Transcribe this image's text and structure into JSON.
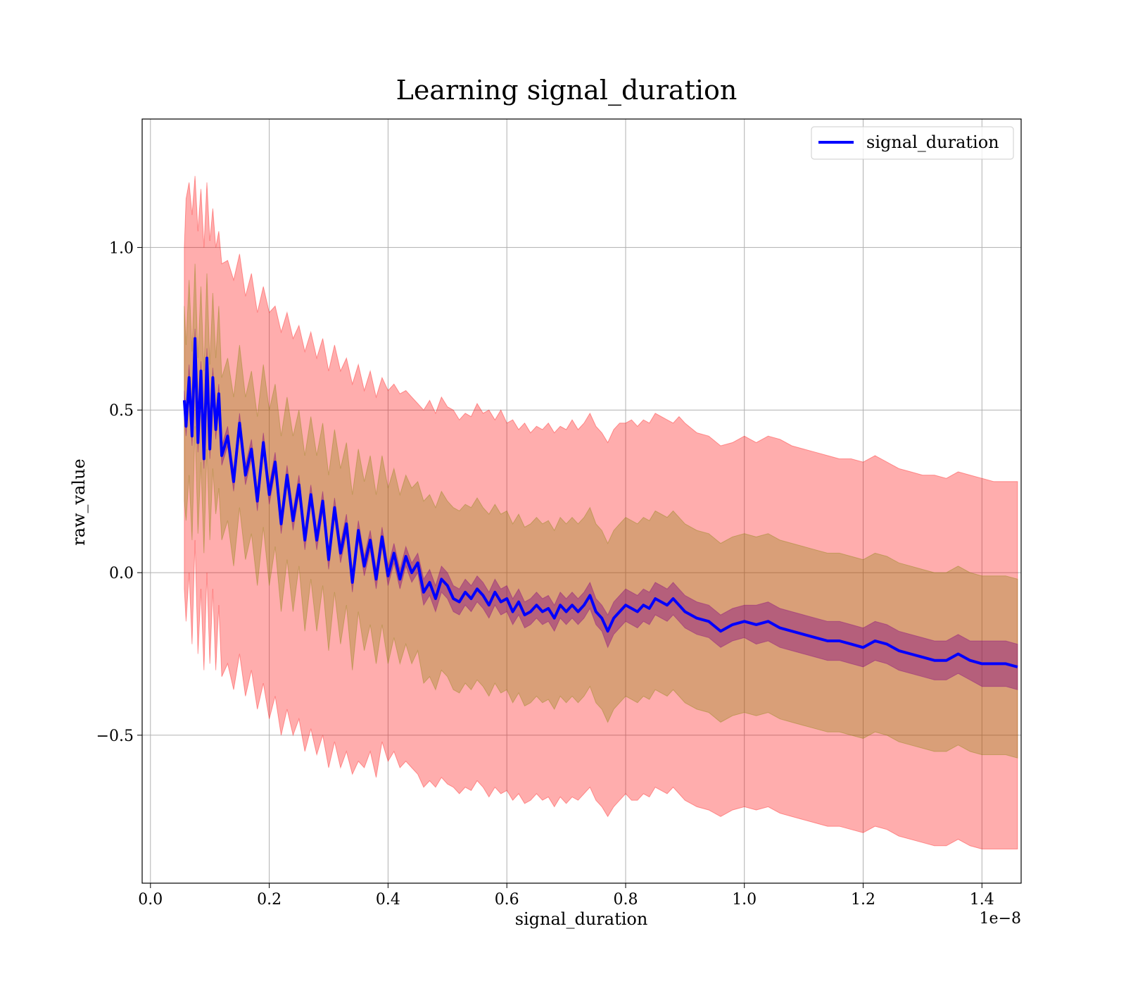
{
  "chart_data": {
    "type": "line",
    "title": "Learning signal_duration",
    "xlabel": "signal_duration",
    "ylabel": "raw_value",
    "x_offset_label": "1e−8",
    "xlim": [
      -0.014,
      1.466
    ],
    "ylim": [
      -0.955,
      1.395
    ],
    "xticks": [
      0.0,
      0.2,
      0.4,
      0.6,
      0.8,
      1.0,
      1.2,
      1.4
    ],
    "xtick_labels": [
      "0.0",
      "0.2",
      "0.4",
      "0.6",
      "0.8",
      "1.0",
      "1.2",
      "1.4"
    ],
    "yticks": [
      -0.5,
      0.0,
      0.5,
      1.0
    ],
    "ytick_labels": [
      "−0.5",
      "0.0",
      "0.5",
      "1.0"
    ],
    "grid": true,
    "legend_position": "top-right",
    "colors": {
      "line": "#0000ff",
      "band_outer": "#ff0000",
      "band_middle": "#808000",
      "band_inner": "#800080"
    },
    "x": [
      0.057,
      0.06,
      0.065,
      0.07,
      0.075,
      0.08,
      0.085,
      0.09,
      0.095,
      0.1,
      0.105,
      0.11,
      0.115,
      0.12,
      0.13,
      0.14,
      0.15,
      0.16,
      0.17,
      0.18,
      0.19,
      0.2,
      0.21,
      0.22,
      0.23,
      0.24,
      0.25,
      0.26,
      0.27,
      0.28,
      0.29,
      0.3,
      0.31,
      0.32,
      0.33,
      0.34,
      0.35,
      0.36,
      0.37,
      0.38,
      0.39,
      0.4,
      0.41,
      0.42,
      0.43,
      0.44,
      0.45,
      0.46,
      0.47,
      0.48,
      0.49,
      0.5,
      0.51,
      0.52,
      0.53,
      0.54,
      0.55,
      0.56,
      0.57,
      0.58,
      0.59,
      0.6,
      0.61,
      0.62,
      0.63,
      0.64,
      0.65,
      0.66,
      0.67,
      0.68,
      0.69,
      0.7,
      0.71,
      0.72,
      0.73,
      0.74,
      0.75,
      0.76,
      0.77,
      0.78,
      0.79,
      0.8,
      0.81,
      0.82,
      0.83,
      0.84,
      0.85,
      0.86,
      0.87,
      0.88,
      0.89,
      0.9,
      0.92,
      0.94,
      0.96,
      0.98,
      1.0,
      1.02,
      1.04,
      1.06,
      1.08,
      1.1,
      1.12,
      1.14,
      1.16,
      1.18,
      1.2,
      1.22,
      1.24,
      1.26,
      1.28,
      1.3,
      1.32,
      1.34,
      1.36,
      1.38,
      1.4,
      1.42,
      1.44,
      1.46
    ],
    "series": [
      {
        "name": "signal_duration",
        "values": [
          0.53,
          0.45,
          0.6,
          0.42,
          0.72,
          0.4,
          0.62,
          0.35,
          0.66,
          0.38,
          0.6,
          0.44,
          0.55,
          0.36,
          0.42,
          0.28,
          0.46,
          0.3,
          0.38,
          0.22,
          0.4,
          0.24,
          0.34,
          0.15,
          0.3,
          0.16,
          0.27,
          0.1,
          0.24,
          0.1,
          0.22,
          0.04,
          0.2,
          0.06,
          0.15,
          -0.03,
          0.13,
          0.02,
          0.1,
          -0.02,
          0.11,
          -0.01,
          0.06,
          -0.02,
          0.05,
          0.0,
          0.03,
          -0.06,
          -0.03,
          -0.08,
          -0.02,
          -0.04,
          -0.08,
          -0.09,
          -0.06,
          -0.08,
          -0.05,
          -0.07,
          -0.1,
          -0.06,
          -0.09,
          -0.08,
          -0.12,
          -0.09,
          -0.13,
          -0.12,
          -0.1,
          -0.12,
          -0.11,
          -0.14,
          -0.1,
          -0.12,
          -0.1,
          -0.12,
          -0.1,
          -0.07,
          -0.12,
          -0.14,
          -0.18,
          -0.14,
          -0.12,
          -0.1,
          -0.11,
          -0.12,
          -0.1,
          -0.11,
          -0.08,
          -0.09,
          -0.1,
          -0.08,
          -0.1,
          -0.12,
          -0.14,
          -0.15,
          -0.18,
          -0.16,
          -0.15,
          -0.16,
          -0.15,
          -0.17,
          -0.18,
          -0.19,
          -0.2,
          -0.21,
          -0.21,
          -0.22,
          -0.23,
          -0.21,
          -0.22,
          -0.24,
          -0.25,
          -0.26,
          -0.27,
          -0.27,
          -0.25,
          -0.27,
          -0.28,
          -0.28,
          -0.28,
          -0.29
        ]
      }
    ],
    "bands": [
      {
        "role": "outer",
        "upper": [
          1.0,
          1.15,
          1.2,
          1.1,
          1.22,
          1.05,
          1.18,
          1.0,
          1.2,
          1.02,
          1.12,
          1.0,
          1.05,
          0.95,
          0.96,
          0.9,
          0.98,
          0.85,
          0.92,
          0.8,
          0.88,
          0.8,
          0.82,
          0.74,
          0.8,
          0.72,
          0.76,
          0.68,
          0.74,
          0.66,
          0.72,
          0.62,
          0.7,
          0.62,
          0.66,
          0.58,
          0.64,
          0.56,
          0.62,
          0.54,
          0.6,
          0.56,
          0.58,
          0.55,
          0.56,
          0.54,
          0.52,
          0.5,
          0.53,
          0.49,
          0.54,
          0.51,
          0.5,
          0.47,
          0.49,
          0.48,
          0.52,
          0.49,
          0.5,
          0.47,
          0.5,
          0.46,
          0.47,
          0.44,
          0.46,
          0.43,
          0.45,
          0.44,
          0.46,
          0.43,
          0.45,
          0.44,
          0.47,
          0.44,
          0.46,
          0.49,
          0.45,
          0.43,
          0.4,
          0.44,
          0.46,
          0.46,
          0.47,
          0.45,
          0.47,
          0.46,
          0.49,
          0.48,
          0.47,
          0.46,
          0.48,
          0.46,
          0.43,
          0.42,
          0.39,
          0.4,
          0.42,
          0.4,
          0.42,
          0.41,
          0.39,
          0.38,
          0.37,
          0.36,
          0.35,
          0.35,
          0.34,
          0.36,
          0.34,
          0.32,
          0.31,
          0.3,
          0.3,
          0.29,
          0.31,
          0.3,
          0.29,
          0.28,
          0.28,
          0.28
        ],
        "lower": [
          -0.05,
          -0.15,
          0.0,
          -0.22,
          0.1,
          -0.25,
          -0.05,
          -0.3,
          0.0,
          -0.28,
          -0.05,
          -0.3,
          -0.1,
          -0.32,
          -0.28,
          -0.36,
          -0.25,
          -0.38,
          -0.3,
          -0.42,
          -0.34,
          -0.45,
          -0.38,
          -0.5,
          -0.42,
          -0.5,
          -0.45,
          -0.55,
          -0.48,
          -0.56,
          -0.5,
          -0.6,
          -0.52,
          -0.6,
          -0.55,
          -0.62,
          -0.58,
          -0.6,
          -0.55,
          -0.63,
          -0.52,
          -0.58,
          -0.55,
          -0.6,
          -0.58,
          -0.6,
          -0.62,
          -0.66,
          -0.64,
          -0.66,
          -0.63,
          -0.65,
          -0.66,
          -0.68,
          -0.66,
          -0.67,
          -0.64,
          -0.66,
          -0.69,
          -0.66,
          -0.68,
          -0.67,
          -0.7,
          -0.68,
          -0.71,
          -0.7,
          -0.68,
          -0.7,
          -0.69,
          -0.72,
          -0.69,
          -0.71,
          -0.69,
          -0.7,
          -0.68,
          -0.66,
          -0.7,
          -0.72,
          -0.75,
          -0.72,
          -0.7,
          -0.68,
          -0.7,
          -0.7,
          -0.68,
          -0.69,
          -0.66,
          -0.67,
          -0.68,
          -0.66,
          -0.68,
          -0.7,
          -0.72,
          -0.73,
          -0.75,
          -0.73,
          -0.72,
          -0.73,
          -0.72,
          -0.74,
          -0.75,
          -0.76,
          -0.77,
          -0.78,
          -0.78,
          -0.79,
          -0.8,
          -0.78,
          -0.79,
          -0.81,
          -0.82,
          -0.83,
          -0.84,
          -0.84,
          -0.82,
          -0.84,
          -0.85,
          -0.85,
          -0.85,
          -0.85
        ]
      },
      {
        "role": "middle",
        "upper": [
          0.82,
          0.7,
          0.9,
          0.68,
          0.95,
          0.66,
          0.88,
          0.62,
          0.92,
          0.64,
          0.86,
          0.66,
          0.82,
          0.6,
          0.66,
          0.54,
          0.7,
          0.54,
          0.62,
          0.48,
          0.64,
          0.5,
          0.58,
          0.42,
          0.54,
          0.42,
          0.5,
          0.36,
          0.48,
          0.36,
          0.46,
          0.3,
          0.44,
          0.32,
          0.4,
          0.24,
          0.38,
          0.28,
          0.36,
          0.24,
          0.36,
          0.26,
          0.32,
          0.24,
          0.3,
          0.26,
          0.28,
          0.22,
          0.24,
          0.2,
          0.25,
          0.22,
          0.2,
          0.19,
          0.21,
          0.2,
          0.23,
          0.2,
          0.18,
          0.21,
          0.18,
          0.19,
          0.15,
          0.18,
          0.14,
          0.15,
          0.17,
          0.15,
          0.16,
          0.13,
          0.17,
          0.15,
          0.17,
          0.15,
          0.17,
          0.2,
          0.15,
          0.13,
          0.09,
          0.13,
          0.15,
          0.17,
          0.16,
          0.15,
          0.17,
          0.16,
          0.19,
          0.18,
          0.17,
          0.19,
          0.17,
          0.15,
          0.13,
          0.12,
          0.09,
          0.11,
          0.12,
          0.11,
          0.12,
          0.1,
          0.09,
          0.08,
          0.07,
          0.06,
          0.06,
          0.05,
          0.04,
          0.06,
          0.05,
          0.03,
          0.02,
          0.01,
          0.0,
          0.0,
          0.02,
          0.0,
          -0.01,
          -0.01,
          -0.01,
          -0.02
        ],
        "lower": [
          0.22,
          0.16,
          0.3,
          0.1,
          0.45,
          0.12,
          0.34,
          0.06,
          0.38,
          0.1,
          0.32,
          0.18,
          0.26,
          0.1,
          0.16,
          0.02,
          0.2,
          0.04,
          0.12,
          -0.04,
          0.14,
          -0.04,
          0.08,
          -0.12,
          0.04,
          -0.12,
          0.02,
          -0.18,
          -0.02,
          -0.18,
          -0.04,
          -0.24,
          -0.06,
          -0.22,
          -0.1,
          -0.3,
          -0.12,
          -0.24,
          -0.16,
          -0.28,
          -0.16,
          -0.28,
          -0.2,
          -0.28,
          -0.22,
          -0.28,
          -0.24,
          -0.34,
          -0.32,
          -0.36,
          -0.3,
          -0.32,
          -0.36,
          -0.37,
          -0.34,
          -0.36,
          -0.33,
          -0.35,
          -0.38,
          -0.34,
          -0.37,
          -0.36,
          -0.4,
          -0.37,
          -0.41,
          -0.4,
          -0.38,
          -0.4,
          -0.39,
          -0.42,
          -0.38,
          -0.4,
          -0.38,
          -0.4,
          -0.38,
          -0.35,
          -0.4,
          -0.42,
          -0.46,
          -0.42,
          -0.4,
          -0.38,
          -0.39,
          -0.4,
          -0.38,
          -0.39,
          -0.36,
          -0.37,
          -0.38,
          -0.36,
          -0.38,
          -0.4,
          -0.42,
          -0.43,
          -0.46,
          -0.44,
          -0.43,
          -0.44,
          -0.43,
          -0.45,
          -0.46,
          -0.47,
          -0.48,
          -0.49,
          -0.49,
          -0.5,
          -0.51,
          -0.49,
          -0.5,
          -0.52,
          -0.53,
          -0.54,
          -0.55,
          -0.55,
          -0.53,
          -0.55,
          -0.56,
          -0.56,
          -0.56,
          -0.57
        ]
      },
      {
        "role": "inner",
        "upper": [
          0.56,
          0.48,
          0.64,
          0.45,
          0.75,
          0.43,
          0.65,
          0.38,
          0.69,
          0.41,
          0.63,
          0.47,
          0.58,
          0.39,
          0.45,
          0.31,
          0.49,
          0.33,
          0.41,
          0.25,
          0.43,
          0.27,
          0.37,
          0.18,
          0.33,
          0.19,
          0.3,
          0.13,
          0.27,
          0.13,
          0.25,
          0.07,
          0.23,
          0.09,
          0.18,
          0.0,
          0.16,
          0.05,
          0.13,
          0.01,
          0.14,
          0.02,
          0.09,
          0.01,
          0.08,
          0.03,
          0.06,
          -0.02,
          0.01,
          -0.04,
          0.02,
          0.0,
          -0.04,
          -0.05,
          -0.02,
          -0.04,
          -0.01,
          -0.03,
          -0.06,
          -0.02,
          -0.05,
          -0.04,
          -0.08,
          -0.05,
          -0.09,
          -0.08,
          -0.06,
          -0.08,
          -0.07,
          -0.1,
          -0.06,
          -0.08,
          -0.06,
          -0.08,
          -0.06,
          -0.03,
          -0.08,
          -0.1,
          -0.13,
          -0.09,
          -0.07,
          -0.05,
          -0.06,
          -0.07,
          -0.05,
          -0.06,
          -0.03,
          -0.04,
          -0.05,
          -0.03,
          -0.05,
          -0.07,
          -0.09,
          -0.1,
          -0.13,
          -0.11,
          -0.1,
          -0.1,
          -0.09,
          -0.11,
          -0.12,
          -0.13,
          -0.14,
          -0.15,
          -0.15,
          -0.16,
          -0.17,
          -0.15,
          -0.16,
          -0.18,
          -0.19,
          -0.2,
          -0.21,
          -0.21,
          -0.19,
          -0.21,
          -0.21,
          -0.21,
          -0.21,
          -0.22
        ],
        "lower": [
          0.5,
          0.42,
          0.56,
          0.39,
          0.69,
          0.37,
          0.59,
          0.32,
          0.63,
          0.35,
          0.57,
          0.41,
          0.52,
          0.33,
          0.39,
          0.25,
          0.43,
          0.27,
          0.35,
          0.19,
          0.37,
          0.21,
          0.31,
          0.12,
          0.27,
          0.13,
          0.24,
          0.07,
          0.21,
          0.07,
          0.19,
          0.01,
          0.17,
          0.03,
          0.12,
          -0.06,
          0.1,
          -0.01,
          0.07,
          -0.05,
          0.08,
          -0.04,
          0.03,
          -0.05,
          0.02,
          -0.03,
          0.0,
          -0.1,
          -0.07,
          -0.12,
          -0.06,
          -0.08,
          -0.12,
          -0.13,
          -0.1,
          -0.12,
          -0.09,
          -0.11,
          -0.14,
          -0.1,
          -0.13,
          -0.12,
          -0.16,
          -0.13,
          -0.17,
          -0.16,
          -0.14,
          -0.16,
          -0.15,
          -0.18,
          -0.14,
          -0.16,
          -0.14,
          -0.16,
          -0.14,
          -0.11,
          -0.16,
          -0.18,
          -0.23,
          -0.19,
          -0.17,
          -0.15,
          -0.16,
          -0.17,
          -0.15,
          -0.16,
          -0.13,
          -0.14,
          -0.15,
          -0.13,
          -0.15,
          -0.17,
          -0.19,
          -0.2,
          -0.23,
          -0.21,
          -0.2,
          -0.22,
          -0.21,
          -0.23,
          -0.24,
          -0.25,
          -0.26,
          -0.27,
          -0.27,
          -0.28,
          -0.29,
          -0.27,
          -0.28,
          -0.3,
          -0.31,
          -0.32,
          -0.33,
          -0.33,
          -0.31,
          -0.33,
          -0.35,
          -0.35,
          -0.35,
          -0.36
        ]
      }
    ]
  }
}
